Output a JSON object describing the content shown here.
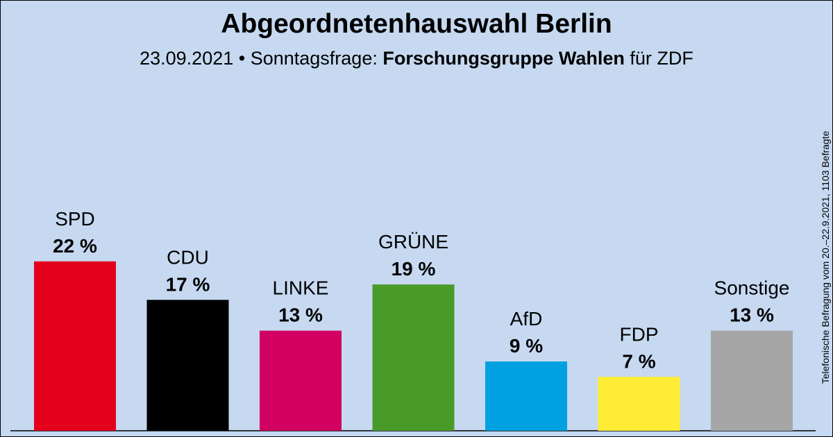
{
  "header": {
    "title": "Abgeordnetenhauswahl Berlin",
    "subtitle_prefix": "23.09.2021 • Sonntagsfrage:",
    "subtitle_source": "Forschungsgruppe Wahlen",
    "subtitle_suffix": "für ZDF"
  },
  "footnote": "Telefonische Befragung vom 20.–22.9.2021, 1103 Befragte",
  "chart_data": {
    "type": "bar",
    "title": "Abgeordnetenhauswahl Berlin",
    "subtitle": "23.09.2021 • Sonntagsfrage: Forschungsgruppe Wahlen für ZDF",
    "categories": [
      "SPD",
      "CDU",
      "LINKE",
      "GRÜNE",
      "AfD",
      "FDP",
      "Sonstige"
    ],
    "values": [
      22,
      17,
      13,
      19,
      9,
      7,
      13
    ],
    "value_labels": [
      "22 %",
      "17 %",
      "13 %",
      "19 %",
      "9 %",
      "7 %",
      "13 %"
    ],
    "colors": [
      "#e3001b",
      "#000000",
      "#d20060",
      "#4a9a2a",
      "#00a0e1",
      "#ffec35",
      "#a6a6a6"
    ],
    "unit": "%",
    "ylim": [
      0,
      25
    ],
    "grid": false,
    "legend": "none"
  }
}
